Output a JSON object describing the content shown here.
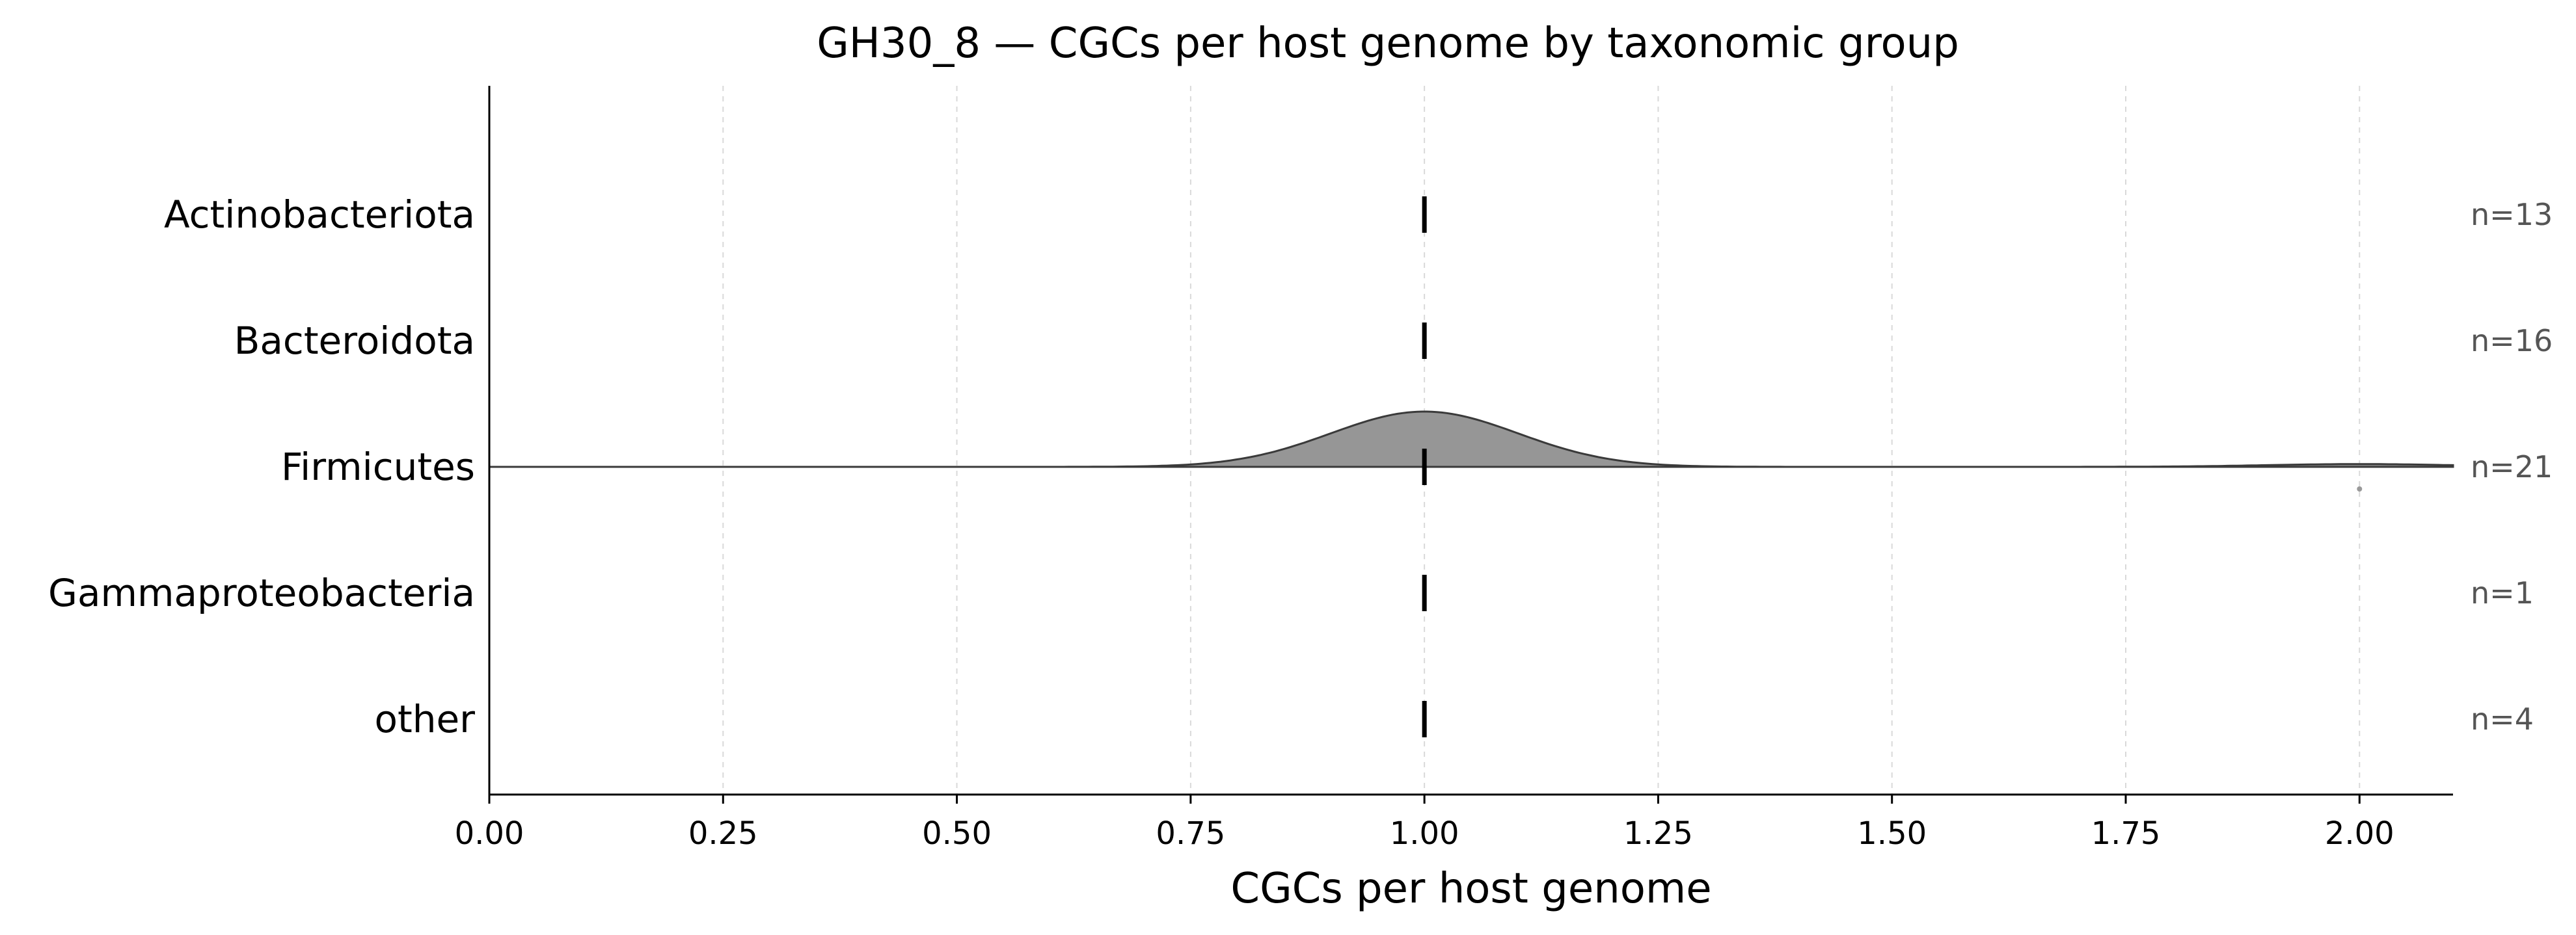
{
  "chart_data": {
    "type": "ridgeline",
    "title": "GH30_8 — CGCs per host genome by taxonomic group",
    "xlabel": "CGCs per host genome",
    "ylabel": "",
    "xlim": [
      0,
      2.1
    ],
    "xticks": [
      "0.00",
      "0.25",
      "0.50",
      "0.75",
      "1.00",
      "1.25",
      "1.50",
      "1.75",
      "2.00"
    ],
    "grid": "vertical dashed",
    "fill_color": "#969696",
    "line_color": "#3a3a3a",
    "median_color": "#000000",
    "groups": [
      {
        "name": "Actinobacteriota",
        "n_label": "n=13",
        "median": 1.0,
        "values": [
          1,
          1,
          1,
          1,
          1,
          1,
          1,
          1,
          1,
          1,
          1,
          1,
          1
        ]
      },
      {
        "name": "Bacteroidota",
        "n_label": "n=16",
        "median": 1.0,
        "values": [
          1,
          1,
          1,
          1,
          1,
          1,
          1,
          1,
          1,
          1,
          1,
          1,
          1,
          1,
          1,
          1
        ]
      },
      {
        "name": "Firmicutes",
        "n_label": "n=21",
        "median": 1.0,
        "values": [
          1,
          1,
          1,
          1,
          1,
          1,
          1,
          1,
          1,
          1,
          1,
          1,
          1,
          1,
          1,
          1,
          1,
          1,
          1,
          1,
          2
        ]
      },
      {
        "name": "Gammaproteobacteria",
        "n_label": "n=1",
        "median": 1.0,
        "values": [
          1
        ]
      },
      {
        "name": "other",
        "n_label": "n=4",
        "median": 1.0,
        "values": [
          1,
          1,
          1,
          1
        ]
      }
    ]
  }
}
